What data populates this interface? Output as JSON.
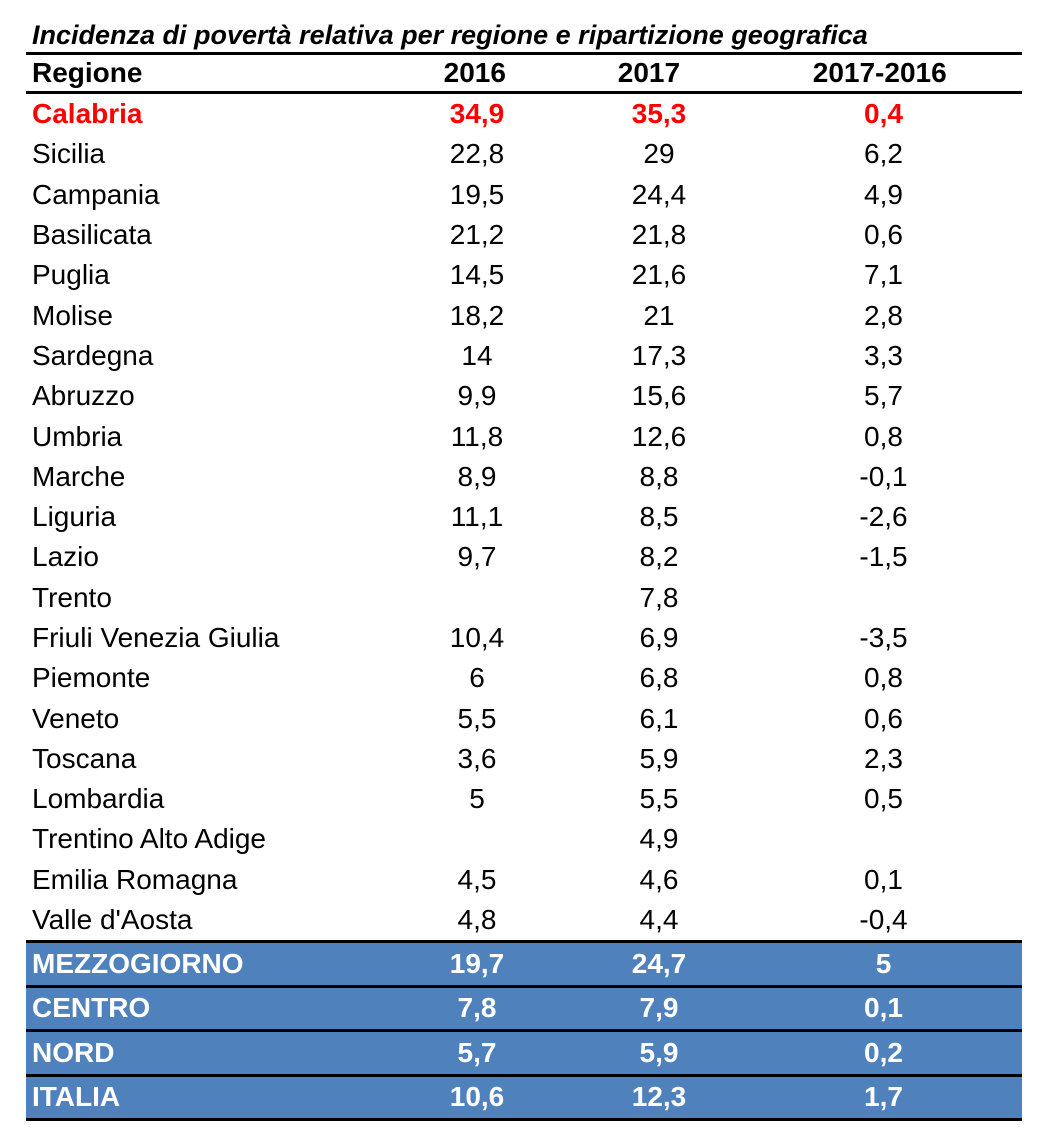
{
  "title": "Incidenza di povertà relativa per regione e ripartizione geografica",
  "columns": {
    "region": "Regione",
    "y2016": "2016",
    "y2017": "2017",
    "diff": "2017-2016"
  },
  "highlight_color": "#ff0000",
  "area_color": "#4f81bd",
  "regions": [
    {
      "name": "Calabria",
      "y2016": "34,9",
      "y2017": "35,3",
      "diff": "0,4",
      "highlight": true
    },
    {
      "name": "Sicilia",
      "y2016": "22,8",
      "y2017": "29",
      "diff": "6,2"
    },
    {
      "name": "Campania",
      "y2016": "19,5",
      "y2017": "24,4",
      "diff": "4,9"
    },
    {
      "name": "Basilicata",
      "y2016": "21,2",
      "y2017": "21,8",
      "diff": "0,6"
    },
    {
      "name": "Puglia",
      "y2016": "14,5",
      "y2017": "21,6",
      "diff": "7,1"
    },
    {
      "name": "Molise",
      "y2016": "18,2",
      "y2017": "21",
      "diff": "2,8"
    },
    {
      "name": "Sardegna",
      "y2016": "14",
      "y2017": "17,3",
      "diff": "3,3"
    },
    {
      "name": "Abruzzo",
      "y2016": "9,9",
      "y2017": "15,6",
      "diff": "5,7"
    },
    {
      "name": "Umbria",
      "y2016": "11,8",
      "y2017": "12,6",
      "diff": "0,8"
    },
    {
      "name": "Marche",
      "y2016": "8,9",
      "y2017": "8,8",
      "diff": "-0,1"
    },
    {
      "name": "Liguria",
      "y2016": "11,1",
      "y2017": "8,5",
      "diff": "-2,6"
    },
    {
      "name": "Lazio",
      "y2016": "9,7",
      "y2017": "8,2",
      "diff": "-1,5"
    },
    {
      "name": "Trento",
      "y2016": "",
      "y2017": "7,8",
      "diff": ""
    },
    {
      "name": "Friuli Venezia Giulia",
      "y2016": "10,4",
      "y2017": "6,9",
      "diff": "-3,5"
    },
    {
      "name": "Piemonte",
      "y2016": "6",
      "y2017": "6,8",
      "diff": "0,8"
    },
    {
      "name": "Veneto",
      "y2016": "5,5",
      "y2017": "6,1",
      "diff": "0,6"
    },
    {
      "name": "Toscana",
      "y2016": "3,6",
      "y2017": "5,9",
      "diff": "2,3"
    },
    {
      "name": "Lombardia",
      "y2016": "5",
      "y2017": "5,5",
      "diff": "0,5"
    },
    {
      "name": "Trentino Alto Adige",
      "y2016": "",
      "y2017": "4,9",
      "diff": ""
    },
    {
      "name": "Emilia Romagna",
      "y2016": "4,5",
      "y2017": "4,6",
      "diff": "0,1"
    },
    {
      "name": "Valle d'Aosta",
      "y2016": "4,8",
      "y2017": "4,4",
      "diff": "-0,4"
    }
  ],
  "areas": [
    {
      "name": "MEZZOGIORNO",
      "y2016": "19,7",
      "y2017": "24,7",
      "diff": "5"
    },
    {
      "name": "CENTRO",
      "y2016": "7,8",
      "y2017": "7,9",
      "diff": "0,1"
    },
    {
      "name": "NORD",
      "y2016": "5,7",
      "y2017": "5,9",
      "diff": "0,2"
    },
    {
      "name": "ITALIA",
      "y2016": "10,6",
      "y2017": "12,3",
      "diff": "1,7"
    }
  ]
}
